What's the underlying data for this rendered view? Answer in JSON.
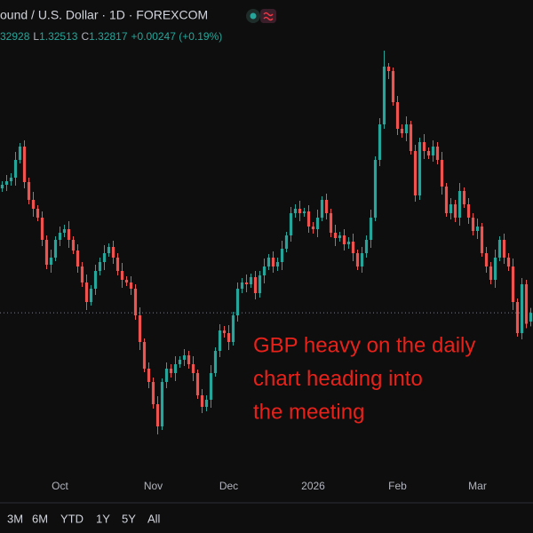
{
  "chart_data": {
    "type": "candlestick",
    "title": "ound / U.S. Dollar · 1D · FOREXCOM",
    "header_high": "32928",
    "low_label": "L",
    "close_label": "C",
    "change": "+0.00247 (+0.19%)",
    "annotation": [
      "GBP heavy on the daily",
      "chart heading into",
      "the meeting"
    ],
    "range_buttons": [
      "3M",
      "6M",
      "YTD",
      "1Y",
      "5Y",
      "All"
    ],
    "up_color": "#26a69a",
    "down_color": "#ef5350",
    "annotation_color": "#e8221b",
    "ylim": [
      1.2926,
      1.3986
    ],
    "categories": [
      null,
      null,
      null,
      null,
      null,
      null,
      null,
      null,
      null,
      null,
      null,
      null,
      null,
      "Oct",
      null,
      null,
      null,
      null,
      null,
      null,
      null,
      null,
      null,
      null,
      null,
      null,
      null,
      null,
      null,
      null,
      null,
      null,
      null,
      null,
      "Nov",
      null,
      null,
      null,
      null,
      null,
      null,
      null,
      null,
      null,
      null,
      null,
      null,
      null,
      null,
      null,
      null,
      "Dec",
      null,
      null,
      null,
      null,
      null,
      null,
      null,
      null,
      null,
      null,
      null,
      null,
      null,
      null,
      null,
      null,
      null,
      null,
      "2026",
      null,
      null,
      null,
      null,
      null,
      null,
      null,
      null,
      null,
      null,
      null,
      null,
      null,
      null,
      null,
      null,
      null,
      null,
      "Feb",
      null,
      null,
      null,
      null,
      null,
      null,
      null,
      null,
      null,
      null,
      null,
      null,
      null,
      null,
      null,
      null,
      null,
      "Mar",
      null,
      null,
      null,
      null,
      null,
      null,
      null,
      null,
      null,
      null,
      null,
      null
    ],
    "open": [
      1.3562,
      1.357,
      1.3578,
      1.3586,
      1.3626,
      1.3656,
      1.3576,
      1.3536,
      1.3516,
      1.3496,
      1.3446,
      1.339,
      1.3406,
      1.3446,
      1.3462,
      1.347,
      1.3446,
      1.3422,
      1.3386,
      1.335,
      1.3306,
      1.3336,
      1.3376,
      1.3396,
      1.3416,
      1.343,
      1.3406,
      1.3376,
      1.3356,
      1.335,
      1.3336,
      1.3276,
      1.3216,
      1.3156,
      1.3126,
      1.3076,
      1.3026,
      1.3126,
      1.3156,
      1.3146,
      1.3166,
      1.3176,
      1.3186,
      1.3166,
      1.3146,
      1.3096,
      1.307,
      1.3086,
      1.3146,
      1.3196,
      1.3242,
      1.3236,
      1.3216,
      1.3276,
      1.3336,
      1.335,
      1.3346,
      1.3362,
      1.3326,
      1.3366,
      1.3386,
      1.3406,
      1.3386,
      1.3396,
      1.3426,
      1.3456,
      1.3506,
      1.3516,
      1.3506,
      1.351,
      1.3476,
      1.347,
      1.3496,
      1.3536,
      1.3506,
      1.3462,
      1.345,
      1.3456,
      1.3436,
      1.3442,
      1.3416,
      1.3386,
      1.3416,
      1.3446,
      1.3496,
      1.3626,
      1.3706,
      1.3836,
      1.3826,
      1.3756,
      1.3696,
      1.3686,
      1.3706,
      1.3646,
      1.3546,
      1.3666,
      1.3646,
      1.3636,
      1.3656,
      1.3626,
      1.3566,
      1.3506,
      1.3526,
      1.3496,
      1.3556,
      1.3526,
      1.3496,
      1.3466,
      1.3476,
      1.3416,
      1.3386,
      1.3356,
      1.3406,
      1.3446,
      1.3406,
      1.3386,
      1.3306,
      1.3236,
      1.3346,
      1.3262
    ],
    "high": [
      1.3578,
      1.3592,
      1.3596,
      1.3644,
      1.3664,
      1.367,
      1.3586,
      1.3554,
      1.3524,
      1.351,
      1.3456,
      1.3424,
      1.3454,
      1.3476,
      1.348,
      1.3488,
      1.3454,
      1.3436,
      1.3396,
      1.3368,
      1.3344,
      1.339,
      1.3406,
      1.3434,
      1.3438,
      1.3444,
      1.3416,
      1.3394,
      1.3364,
      1.3364,
      1.3346,
      1.3294,
      1.3224,
      1.317,
      1.3136,
      1.3094,
      1.3134,
      1.317,
      1.3166,
      1.3184,
      1.3184,
      1.32,
      1.3196,
      1.3184,
      1.3154,
      1.311,
      1.3096,
      1.3164,
      1.3204,
      1.3256,
      1.3252,
      1.3254,
      1.3284,
      1.335,
      1.336,
      1.3368,
      1.337,
      1.3376,
      1.3376,
      1.3404,
      1.3414,
      1.342,
      1.3406,
      1.3444,
      1.3464,
      1.352,
      1.3526,
      1.3534,
      1.3518,
      1.3524,
      1.3486,
      1.3514,
      1.3544,
      1.355,
      1.3516,
      1.348,
      1.3464,
      1.347,
      1.3452,
      1.346,
      1.3424,
      1.343,
      1.3456,
      1.3514,
      1.3634,
      1.372,
      1.3872,
      1.3844,
      1.3834,
      1.377,
      1.3706,
      1.3724,
      1.3714,
      1.366,
      1.3676,
      1.3684,
      1.3654,
      1.367,
      1.3666,
      1.3644,
      1.3574,
      1.354,
      1.3536,
      1.3574,
      1.3564,
      1.354,
      1.3506,
      1.3494,
      1.3484,
      1.343,
      1.3396,
      1.3424,
      1.3454,
      1.346,
      1.3416,
      1.3404,
      1.3314,
      1.336,
      1.3356,
      1.32928
    ],
    "low": [
      1.3554,
      1.3556,
      1.3568,
      1.3568,
      1.3618,
      1.3562,
      1.3526,
      1.3498,
      1.3488,
      1.3432,
      1.338,
      1.3372,
      1.3398,
      1.3432,
      1.3452,
      1.3428,
      1.3414,
      1.3372,
      1.334,
      1.3288,
      1.3298,
      1.3322,
      1.3366,
      1.3378,
      1.3408,
      1.3392,
      1.3366,
      1.3338,
      1.3342,
      1.3322,
      1.3266,
      1.3198,
      1.3148,
      1.3112,
      1.3066,
      1.3008,
      1.3018,
      1.3112,
      1.3136,
      1.3128,
      1.3158,
      1.3162,
      1.3156,
      1.3128,
      1.3088,
      1.3056,
      1.306,
      1.3068,
      1.3138,
      1.3182,
      1.3226,
      1.3198,
      1.3208,
      1.3262,
      1.3326,
      1.3328,
      1.3338,
      1.3312,
      1.3316,
      1.3348,
      1.3378,
      1.3372,
      1.3376,
      1.3378,
      1.3418,
      1.3442,
      1.3496,
      1.3488,
      1.3498,
      1.3462,
      1.346,
      1.3452,
      1.3488,
      1.3492,
      1.3452,
      1.3432,
      1.3442,
      1.3422,
      1.3426,
      1.3398,
      1.3378,
      1.3372,
      1.3406,
      1.3428,
      1.3488,
      1.3612,
      1.3696,
      1.3808,
      1.3748,
      1.3682,
      1.3676,
      1.3668,
      1.3638,
      1.3532,
      1.3536,
      1.3628,
      1.3628,
      1.3622,
      1.3616,
      1.3548,
      1.3498,
      1.3492,
      1.3486,
      1.3478,
      1.3518,
      1.3482,
      1.3456,
      1.3448,
      1.3408,
      1.3372,
      1.3346,
      1.3338,
      1.3398,
      1.3392,
      1.3376,
      1.3288,
      1.3228,
      1.3222,
      1.3247,
      1.32513
    ],
    "close": [
      1.357,
      1.3578,
      1.3586,
      1.3626,
      1.3656,
      1.3576,
      1.3536,
      1.3516,
      1.3496,
      1.3446,
      1.339,
      1.3406,
      1.3446,
      1.3462,
      1.347,
      1.3446,
      1.3422,
      1.3386,
      1.335,
      1.3306,
      1.3336,
      1.3376,
      1.3396,
      1.3416,
      1.343,
      1.3406,
      1.3376,
      1.3356,
      1.335,
      1.3336,
      1.3276,
      1.3216,
      1.3156,
      1.3126,
      1.3076,
      1.3026,
      1.3126,
      1.3156,
      1.3146,
      1.3166,
      1.3176,
      1.3186,
      1.3166,
      1.3146,
      1.3096,
      1.307,
      1.3086,
      1.3146,
      1.3196,
      1.3242,
      1.3236,
      1.3216,
      1.3276,
      1.3336,
      1.335,
      1.3346,
      1.3362,
      1.3326,
      1.3366,
      1.3386,
      1.3406,
      1.3386,
      1.3396,
      1.3426,
      1.3456,
      1.3506,
      1.3516,
      1.3506,
      1.351,
      1.3476,
      1.347,
      1.3496,
      1.3536,
      1.3506,
      1.3462,
      1.345,
      1.3456,
      1.3436,
      1.3442,
      1.3416,
      1.3386,
      1.3416,
      1.3446,
      1.3496,
      1.3626,
      1.3706,
      1.3836,
      1.3826,
      1.3756,
      1.3696,
      1.3686,
      1.3706,
      1.3646,
      1.3546,
      1.3666,
      1.3646,
      1.3636,
      1.3656,
      1.3626,
      1.3566,
      1.3506,
      1.3526,
      1.3496,
      1.3556,
      1.3526,
      1.3496,
      1.3466,
      1.3476,
      1.3416,
      1.3386,
      1.3356,
      1.3406,
      1.3446,
      1.3406,
      1.3386,
      1.3306,
      1.3236,
      1.3346,
      1.3257,
      1.32817
    ]
  }
}
